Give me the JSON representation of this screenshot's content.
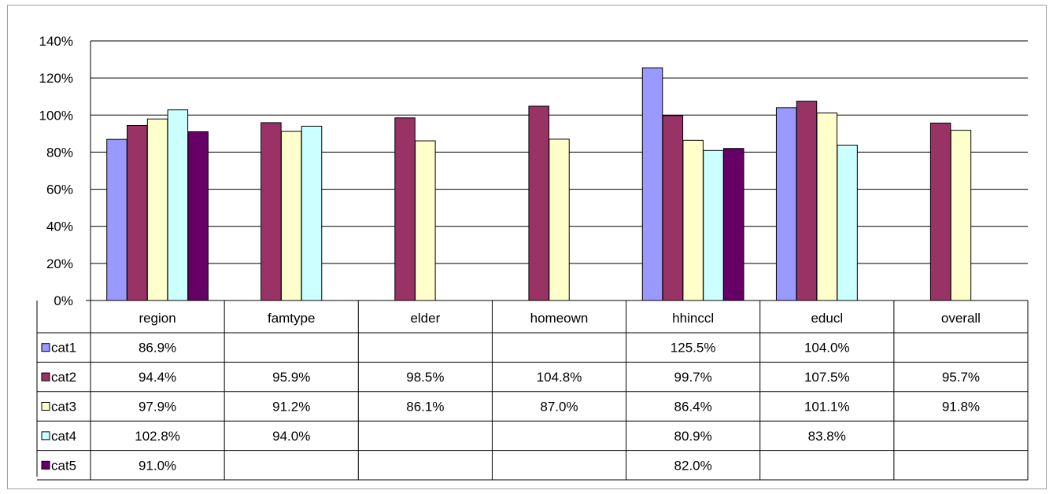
{
  "chart_data": {
    "type": "bar",
    "categories": [
      "region",
      "famtype",
      "elder",
      "homeown",
      "hhinccl",
      "educl",
      "overall"
    ],
    "series": [
      {
        "name": "cat1",
        "color": "#9999ff",
        "values": [
          86.9,
          null,
          null,
          null,
          125.5,
          104.0,
          null
        ],
        "labels": [
          "86.9%",
          "",
          "",
          "",
          "125.5%",
          "104.0%",
          ""
        ]
      },
      {
        "name": "cat2",
        "color": "#993366",
        "values": [
          94.4,
          95.9,
          98.5,
          104.8,
          99.7,
          107.5,
          95.7
        ],
        "labels": [
          "94.4%",
          "95.9%",
          "98.5%",
          "104.8%",
          "99.7%",
          "107.5%",
          "95.7%"
        ]
      },
      {
        "name": "cat3",
        "color": "#ffffcc",
        "values": [
          97.9,
          91.2,
          86.1,
          87.0,
          86.4,
          101.1,
          91.8
        ],
        "labels": [
          "97.9%",
          "91.2%",
          "86.1%",
          "87.0%",
          "86.4%",
          "101.1%",
          "91.8%"
        ]
      },
      {
        "name": "cat4",
        "color": "#ccffff",
        "values": [
          102.8,
          94.0,
          null,
          null,
          80.9,
          83.8,
          null
        ],
        "labels": [
          "102.8%",
          "94.0%",
          "",
          "",
          "80.9%",
          "83.8%",
          ""
        ]
      },
      {
        "name": "cat5",
        "color": "#660066",
        "values": [
          91.0,
          null,
          null,
          null,
          82.0,
          null,
          null
        ],
        "labels": [
          "91.0%",
          "",
          "",
          "",
          "82.0%",
          "",
          ""
        ]
      }
    ],
    "y_ticks": [
      "0%",
      "20%",
      "40%",
      "60%",
      "80%",
      "100%",
      "120%",
      "140%"
    ],
    "ylim": [
      0,
      140
    ],
    "grid": true,
    "legend": "data-table-rows"
  }
}
